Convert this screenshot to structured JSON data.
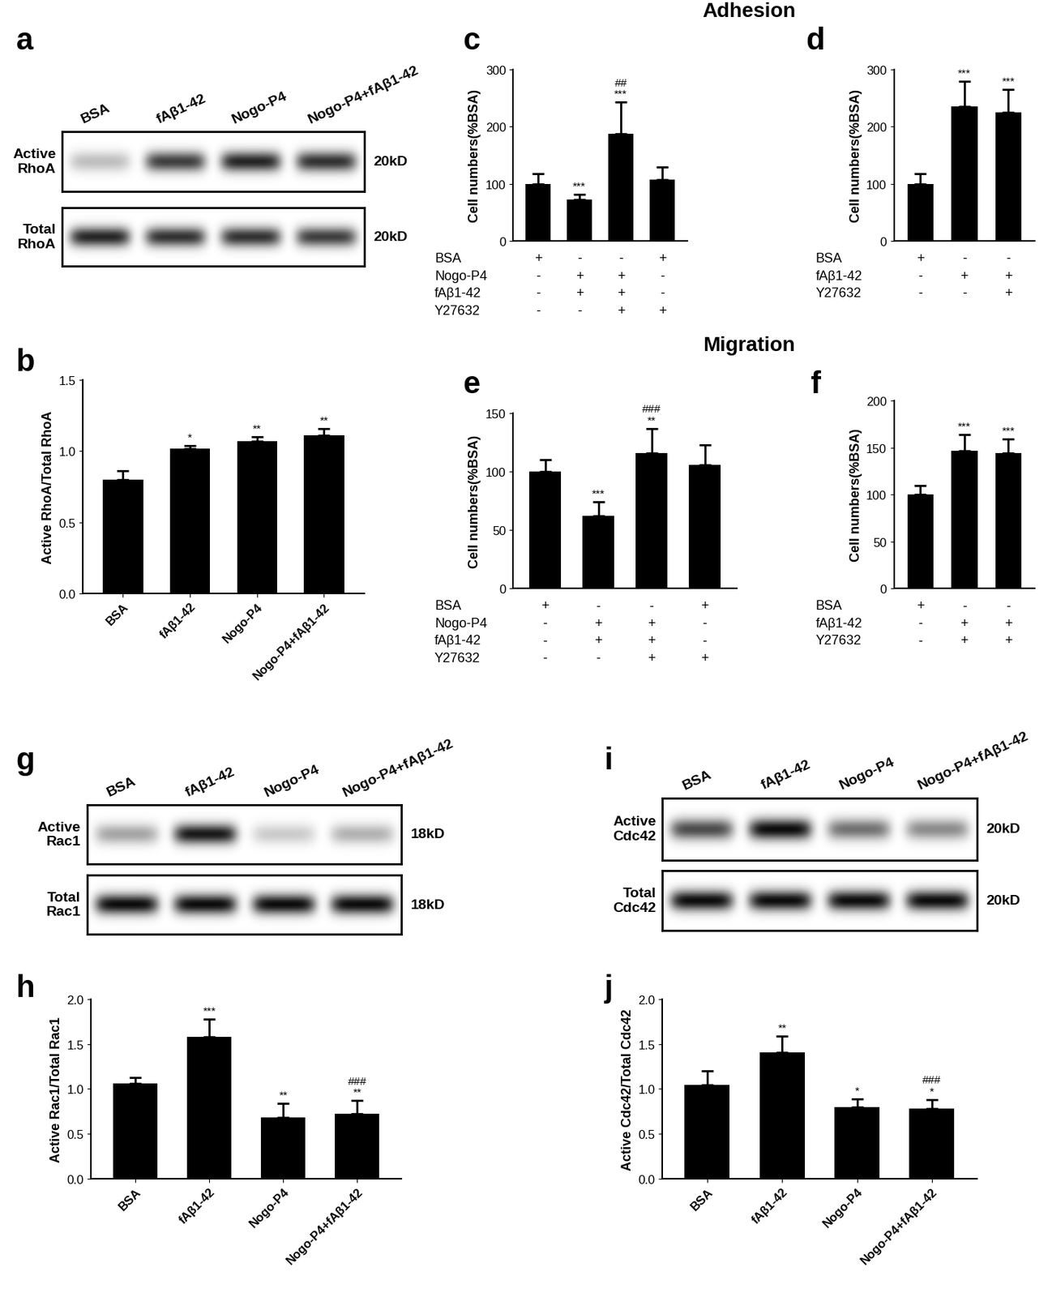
{
  "section_titles": [
    "Adhesion",
    "Migration"
  ],
  "blots": [
    {
      "panel": "a",
      "lanes": [
        "BSA",
        "fAβ1-42",
        "Nogo-P4",
        "Nogo-P4+fAβ1-42"
      ],
      "rows": [
        {
          "name": "Active\nRhoA",
          "size": "20kD",
          "intensity": [
            0.25,
            0.75,
            0.85,
            0.8
          ]
        },
        {
          "name": "Total\nRhoA",
          "size": "20kD",
          "intensity": [
            0.85,
            0.8,
            0.8,
            0.75
          ]
        }
      ]
    },
    {
      "panel": "g",
      "lanes": [
        "BSA",
        "fAβ1-42",
        "Nogo-P4",
        "Nogo-P4+fAβ1-42"
      ],
      "rows": [
        {
          "name": "Active\nRac1",
          "size": "18kD",
          "intensity": [
            0.35,
            0.9,
            0.2,
            0.3
          ]
        },
        {
          "name": "Total\nRac1",
          "size": "18kD",
          "intensity": [
            0.95,
            0.95,
            0.95,
            0.95
          ]
        }
      ]
    },
    {
      "panel": "i",
      "lanes": [
        "BSA",
        "fAβ1-42",
        "Nogo-P4",
        "Nogo-P4+fAβ1-42"
      ],
      "rows": [
        {
          "name": "Active\nCdc42",
          "size": "20kD",
          "intensity": [
            0.7,
            0.95,
            0.55,
            0.45
          ]
        },
        {
          "name": "Total\nCdc42",
          "size": "20kD",
          "intensity": [
            0.95,
            0.95,
            0.95,
            0.95
          ]
        }
      ]
    }
  ],
  "chart_data": [
    {
      "panel": "b",
      "type": "bar",
      "color": "#000000",
      "categories": [
        "BSA",
        "fAβ1-42",
        "Nogo-P4",
        "Nogo-P4+fAβ1-42"
      ],
      "values": [
        0.8,
        1.02,
        1.07,
        1.11
      ],
      "errors": [
        0.06,
        0.02,
        0.03,
        0.05
      ],
      "annotations": [
        [],
        [
          "*"
        ],
        [
          "**"
        ],
        [
          "**"
        ]
      ],
      "y_label": "Active RhoA/Total RhoA",
      "ylim": [
        0.0,
        1.5
      ],
      "yticks": [
        0.0,
        0.5,
        1.0,
        1.5
      ]
    },
    {
      "panel": "c",
      "type": "bar",
      "color": "#000000",
      "categories": [
        null,
        null,
        null,
        null
      ],
      "values": [
        100,
        73,
        188,
        107
      ],
      "errors": [
        18,
        8,
        55,
        22
      ],
      "annotations": [
        [],
        [
          "***"
        ],
        [
          "##",
          "***"
        ],
        []
      ],
      "conditions": [
        {
          "name": "BSA",
          "signs": [
            "+",
            "-",
            "-",
            "+"
          ]
        },
        {
          "name": "Nogo-P4",
          "signs": [
            "-",
            "+",
            "+",
            "-"
          ]
        },
        {
          "name": "fAβ1-42",
          "signs": [
            "-",
            "+",
            "+",
            "-"
          ]
        },
        {
          "name": "Y27632",
          "signs": [
            "-",
            "-",
            "+",
            "+"
          ]
        }
      ],
      "y_label": "Cell numbers(%BSA)",
      "ylim": [
        0,
        300
      ],
      "yticks": [
        0,
        100,
        200,
        300
      ]
    },
    {
      "panel": "d",
      "type": "bar",
      "color": "#000000",
      "categories": [
        null,
        null,
        null
      ],
      "values": [
        100,
        236,
        225
      ],
      "errors": [
        18,
        44,
        40
      ],
      "annotations": [
        [],
        [
          "***"
        ],
        [
          "***"
        ]
      ],
      "conditions": [
        {
          "name": "BSA",
          "signs": [
            "+",
            "-",
            "-"
          ]
        },
        {
          "name": "fAβ1-42",
          "signs": [
            "-",
            "+",
            "+"
          ]
        },
        {
          "name": "Y27632",
          "signs": [
            "-",
            "-",
            "+"
          ]
        }
      ],
      "y_label": "Cell numbers(%BSA)",
      "ylim": [
        0,
        300
      ],
      "yticks": [
        0,
        100,
        200,
        300
      ]
    },
    {
      "panel": "e",
      "type": "bar",
      "color": "#000000",
      "categories": [
        null,
        null,
        null,
        null
      ],
      "values": [
        100,
        62,
        116,
        106
      ],
      "errors": [
        10,
        12,
        21,
        17
      ],
      "annotations": [
        [],
        [
          "***"
        ],
        [
          "###",
          "**"
        ],
        []
      ],
      "conditions": [
        {
          "name": "BSA",
          "signs": [
            "+",
            "-",
            "-",
            "+"
          ]
        },
        {
          "name": "Nogo-P4",
          "signs": [
            "-",
            "+",
            "+",
            "-"
          ]
        },
        {
          "name": "fAβ1-42",
          "signs": [
            "-",
            "+",
            "+",
            "-"
          ]
        },
        {
          "name": "Y27632",
          "signs": [
            "-",
            "-",
            "+",
            "+"
          ]
        }
      ],
      "y_label": "Cell numbers(%BSA)",
      "ylim": [
        0,
        150
      ],
      "yticks": [
        0,
        50,
        100,
        150
      ]
    },
    {
      "panel": "f",
      "type": "bar",
      "color": "#000000",
      "categories": [
        null,
        null,
        null
      ],
      "values": [
        100,
        147,
        144
      ],
      "errors": [
        10,
        17,
        15
      ],
      "annotations": [
        [],
        [
          "***"
        ],
        [
          "***"
        ]
      ],
      "conditions": [
        {
          "name": "BSA",
          "signs": [
            "+",
            "-",
            "-"
          ]
        },
        {
          "name": "fAβ1-42",
          "signs": [
            "-",
            "+",
            "+"
          ]
        },
        {
          "name": "Y27632",
          "signs": [
            "-",
            "+",
            "+"
          ]
        }
      ],
      "y_label": "Cell numbers(%BSA)",
      "ylim": [
        0,
        200
      ],
      "yticks": [
        0,
        50,
        100,
        150,
        200
      ]
    },
    {
      "panel": "h",
      "type": "bar",
      "color": "#000000",
      "categories": [
        "BSA",
        "fAβ1-42",
        "Nogo-P4",
        "Nogo-P4+fAβ1-42"
      ],
      "values": [
        1.06,
        1.58,
        0.68,
        0.72
      ],
      "errors": [
        0.07,
        0.2,
        0.16,
        0.15
      ],
      "annotations": [
        [],
        [
          "***"
        ],
        [
          "**"
        ],
        [
          "###",
          "**"
        ]
      ],
      "y_label": "Active Rac1/Total Rac1",
      "ylim": [
        0.0,
        2.0
      ],
      "yticks": [
        0.0,
        0.5,
        1.0,
        1.5,
        2.0
      ]
    },
    {
      "panel": "j",
      "type": "bar",
      "color": "#000000",
      "categories": [
        "BSA",
        "fAβ1-42",
        "Nogo-P4",
        "Nogo-P4+fAβ1-42"
      ],
      "values": [
        1.04,
        1.41,
        0.8,
        0.78
      ],
      "errors": [
        0.16,
        0.18,
        0.09,
        0.1
      ],
      "annotations": [
        [],
        [
          "**"
        ],
        [
          "*"
        ],
        [
          "###",
          "*"
        ]
      ],
      "y_label": "Active Cdc42/Total Cdc42",
      "ylim": [
        0.0,
        2.0
      ],
      "yticks": [
        0.0,
        0.5,
        1.0,
        1.5,
        2.0
      ]
    }
  ]
}
